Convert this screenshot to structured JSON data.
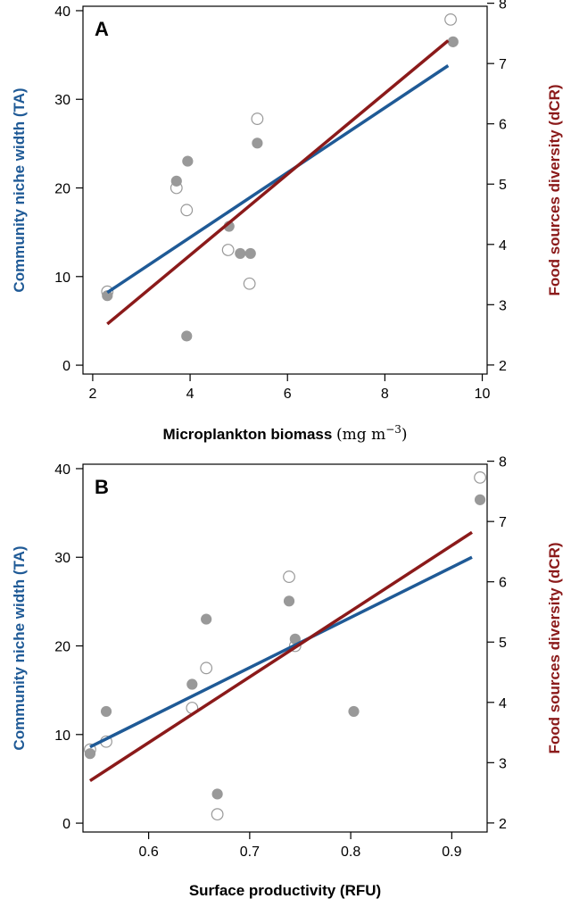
{
  "colors": {
    "blue": "#1f5a96",
    "red": "#8b1a1a",
    "point_fill": "#999999",
    "point_stroke": "#999999",
    "axis": "#000000"
  },
  "chart_data": [
    {
      "type": "scatter",
      "panel_label": "A",
      "xlabel_main": "Microplankton biomass ",
      "xlabel_units": "(mg m",
      "xlabel_sup": "−3",
      "xlabel_close": ")",
      "ylabel_left": "Community niche width (TA)",
      "ylabel_right": "Food sources diversity (dCR)",
      "xlim": [
        1.8,
        10.1
      ],
      "ylim_left": [
        -1,
        40.5
      ],
      "ylim_right": [
        1.85,
        7.95
      ],
      "xticks": [
        "2",
        "4",
        "6",
        "8",
        "10"
      ],
      "yticks_left": [
        "0",
        "10",
        "20",
        "30",
        "40"
      ],
      "yticks_right": [
        "2",
        "3",
        "4",
        "5",
        "6",
        "7",
        "8"
      ],
      "series": [
        {
          "marker": "open-circle",
          "axis": "left",
          "x": [
            2.3,
            3.72,
            3.93,
            4.78,
            5.22,
            5.38,
            9.35
          ],
          "y": [
            8.3,
            20.0,
            17.5,
            13.0,
            9.2,
            27.8,
            39.0
          ]
        },
        {
          "marker": "filled-circle",
          "axis": "right",
          "x": [
            2.3,
            3.72,
            3.95,
            3.93,
            4.8,
            5.03,
            5.24,
            5.38,
            9.4
          ],
          "y": [
            3.15,
            5.05,
            5.38,
            2.48,
            4.3,
            3.85,
            3.85,
            5.68,
            7.36
          ]
        }
      ],
      "fit_lines": [
        {
          "color": "blue",
          "axis": "left",
          "x": [
            2.3,
            9.3
          ],
          "y": [
            8.2,
            33.8
          ]
        },
        {
          "color": "red",
          "axis": "right",
          "x": [
            2.3,
            9.3
          ],
          "y": [
            2.68,
            7.38
          ]
        }
      ]
    },
    {
      "type": "scatter",
      "panel_label": "B",
      "xlabel_main": "Surface productivity (RFU)",
      "xlabel_units": "",
      "xlabel_sup": "",
      "xlabel_close": "",
      "ylabel_left": "Community niche width (TA)",
      "ylabel_right": "Food sources diversity (dCR)",
      "xlim": [
        0.535,
        0.935
      ],
      "ylim_left": [
        -1,
        40.5
      ],
      "ylim_right": [
        1.85,
        7.95
      ],
      "xticks": [
        "0.6",
        "0.7",
        "0.8",
        "0.9"
      ],
      "yticks_left": [
        "0",
        "10",
        "20",
        "30",
        "40"
      ],
      "yticks_right": [
        "2",
        "3",
        "4",
        "5",
        "6",
        "7",
        "8"
      ],
      "series": [
        {
          "marker": "open-circle",
          "axis": "left",
          "x": [
            0.542,
            0.558,
            0.643,
            0.657,
            0.668,
            0.739,
            0.745,
            0.928
          ],
          "y": [
            8.3,
            9.2,
            13.0,
            17.5,
            1.0,
            27.8,
            20.0,
            39.0
          ]
        },
        {
          "marker": "filled-circle",
          "axis": "right",
          "x": [
            0.542,
            0.558,
            0.643,
            0.657,
            0.668,
            0.739,
            0.745,
            0.803,
            0.928
          ],
          "y": [
            3.15,
            3.85,
            4.3,
            5.38,
            2.48,
            5.68,
            5.05,
            3.85,
            7.36
          ]
        }
      ],
      "fit_lines": [
        {
          "color": "blue",
          "axis": "left",
          "x": [
            0.542,
            0.92
          ],
          "y": [
            8.6,
            30.0
          ]
        },
        {
          "color": "red",
          "axis": "right",
          "x": [
            0.542,
            0.92
          ],
          "y": [
            2.7,
            6.82
          ]
        }
      ]
    }
  ]
}
